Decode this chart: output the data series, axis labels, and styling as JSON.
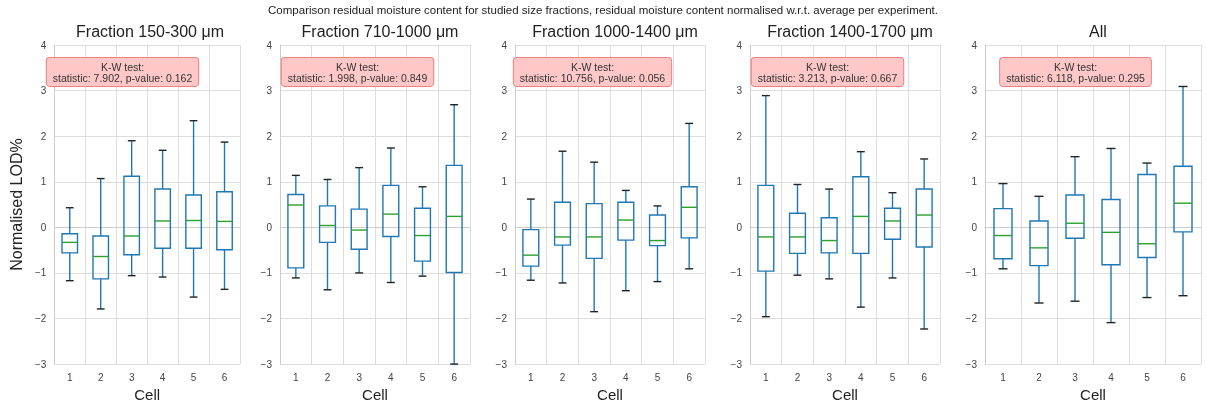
{
  "chart_data": [
    {
      "type": "box",
      "title": "Fraction 150-300 μm",
      "xlabel": "Cell",
      "ylabel": "Normalised LOD%",
      "categories": [
        "1",
        "2",
        "3",
        "4",
        "5",
        "6"
      ],
      "ylim": [
        -3,
        4
      ],
      "yticks": [
        -3,
        -2,
        -1,
        0,
        1,
        2,
        3,
        4
      ],
      "grid": true,
      "color": "#1f77b4",
      "annotations": [
        "K-W test:\nstatistic: 7.902, p-value: 0.162"
      ],
      "boxes": [
        {
          "low": -1.17,
          "q1": -0.56,
          "median": -0.33,
          "q3": -0.14,
          "high": 0.43
        },
        {
          "low": -1.79,
          "q1": -1.13,
          "median": -0.64,
          "q3": -0.19,
          "high": 1.07
        },
        {
          "low": -1.06,
          "q1": -0.6,
          "median": -0.19,
          "q3": 1.12,
          "high": 1.9
        },
        {
          "low": -1.09,
          "q1": -0.46,
          "median": 0.14,
          "q3": 0.84,
          "high": 1.69
        },
        {
          "low": -1.53,
          "q1": -0.46,
          "median": 0.15,
          "q3": 0.71,
          "high": 2.34
        },
        {
          "low": -1.36,
          "q1": -0.49,
          "median": 0.13,
          "q3": 0.78,
          "high": 1.87
        }
      ]
    },
    {
      "type": "box",
      "title": "Fraction 710-1000 μm",
      "xlabel": "Cell",
      "categories": [
        "1",
        "2",
        "3",
        "4",
        "5",
        "6"
      ],
      "ylim": [
        -3,
        4
      ],
      "yticks": [
        -3,
        -2,
        -1,
        0,
        1,
        2,
        3,
        4
      ],
      "grid": true,
      "color": "#1f77b4",
      "annotations": [
        "K-W test:\nstatistic: 1.998, p-value: 0.849"
      ],
      "boxes": [
        {
          "low": -1.11,
          "q1": -0.89,
          "median": 0.49,
          "q3": 0.72,
          "high": 1.14
        },
        {
          "low": -1.37,
          "q1": -0.33,
          "median": 0.04,
          "q3": 0.47,
          "high": 1.05
        },
        {
          "low": -1.0,
          "q1": -0.48,
          "median": -0.06,
          "q3": 0.4,
          "high": 1.31
        },
        {
          "low": -1.21,
          "q1": -0.2,
          "median": 0.29,
          "q3": 0.92,
          "high": 1.74
        },
        {
          "low": -1.07,
          "q1": -0.74,
          "median": -0.18,
          "q3": 0.42,
          "high": 0.89
        },
        {
          "low": -3.0,
          "q1": -0.99,
          "median": 0.24,
          "q3": 1.36,
          "high": 2.69
        }
      ]
    },
    {
      "type": "box",
      "title": "Fraction 1000-1400 μm",
      "subtitle": "Comparison residual moisture content for studied size fractions, residual moisture content normalised w.r.t. average per experiment.",
      "xlabel": "Cell",
      "categories": [
        "1",
        "2",
        "3",
        "4",
        "5",
        "6"
      ],
      "ylim": [
        -3,
        4
      ],
      "yticks": [
        -3,
        -2,
        -1,
        0,
        1,
        2,
        3,
        4
      ],
      "grid": true,
      "color": "#1f77b4",
      "annotations": [
        "K-W test:\nstatistic: 10.756, p-value: 0.056"
      ],
      "boxes": [
        {
          "low": -1.16,
          "q1": -0.85,
          "median": -0.61,
          "q3": -0.05,
          "high": 0.62
        },
        {
          "low": -1.22,
          "q1": -0.39,
          "median": -0.21,
          "q3": 0.55,
          "high": 1.67
        },
        {
          "low": -1.85,
          "q1": -0.68,
          "median": -0.21,
          "q3": 0.52,
          "high": 1.43
        },
        {
          "low": -1.39,
          "q1": -0.28,
          "median": 0.16,
          "q3": 0.55,
          "high": 0.81
        },
        {
          "low": -1.19,
          "q1": -0.4,
          "median": -0.29,
          "q3": 0.27,
          "high": 0.47
        },
        {
          "low": -0.91,
          "q1": -0.23,
          "median": 0.44,
          "q3": 0.89,
          "high": 2.28
        }
      ]
    },
    {
      "type": "box",
      "title": "Fraction 1400-1700 μm",
      "xlabel": "Cell",
      "categories": [
        "1",
        "2",
        "3",
        "4",
        "5",
        "6"
      ],
      "ylim": [
        -3,
        4
      ],
      "yticks": [
        -3,
        -2,
        -1,
        0,
        1,
        2,
        3,
        4
      ],
      "grid": true,
      "color": "#1f77b4",
      "annotations": [
        "K-W test:\nstatistic: 3.213, p-value: 0.667"
      ],
      "boxes": [
        {
          "low": -1.96,
          "q1": -0.96,
          "median": -0.21,
          "q3": 0.92,
          "high": 2.89
        },
        {
          "low": -1.05,
          "q1": -0.57,
          "median": -0.21,
          "q3": 0.31,
          "high": 0.94
        },
        {
          "low": -1.13,
          "q1": -0.56,
          "median": -0.29,
          "q3": 0.21,
          "high": 0.84
        },
        {
          "low": -1.75,
          "q1": -0.57,
          "median": 0.24,
          "q3": 1.11,
          "high": 1.66
        },
        {
          "low": -1.11,
          "q1": -0.26,
          "median": 0.14,
          "q3": 0.42,
          "high": 0.76
        },
        {
          "low": -2.23,
          "q1": -0.43,
          "median": 0.27,
          "q3": 0.84,
          "high": 1.5
        }
      ]
    },
    {
      "type": "box",
      "title": "All",
      "xlabel": "Cell",
      "categories": [
        "1",
        "2",
        "3",
        "4",
        "5",
        "6"
      ],
      "ylim": [
        -3,
        4
      ],
      "yticks": [
        -3,
        -2,
        -1,
        0,
        1,
        2,
        3,
        4
      ],
      "grid": true,
      "color": "#1f77b4",
      "annotations": [
        "K-W test:\nstatistic: 6.118, p-value: 0.295"
      ],
      "boxes": [
        {
          "low": -0.91,
          "q1": -0.69,
          "median": -0.18,
          "q3": 0.41,
          "high": 0.96
        },
        {
          "low": -1.66,
          "q1": -0.84,
          "median": -0.45,
          "q3": 0.14,
          "high": 0.68
        },
        {
          "low": -1.62,
          "q1": -0.24,
          "median": 0.09,
          "q3": 0.71,
          "high": 1.55
        },
        {
          "low": -2.09,
          "q1": -0.82,
          "median": -0.11,
          "q3": 0.61,
          "high": 1.73
        },
        {
          "low": -1.54,
          "q1": -0.66,
          "median": -0.36,
          "q3": 1.16,
          "high": 1.41
        },
        {
          "low": -1.5,
          "q1": -0.1,
          "median": 0.53,
          "q3": 1.34,
          "high": 3.09
        }
      ]
    }
  ]
}
